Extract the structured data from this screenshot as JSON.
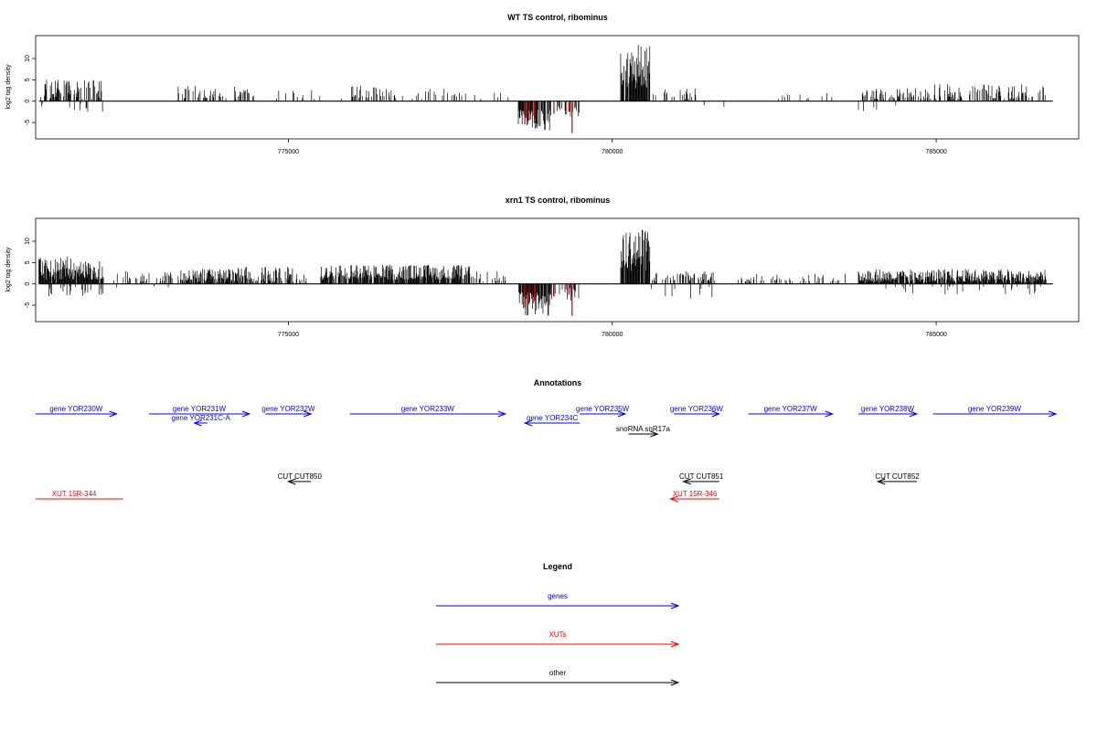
{
  "colors": {
    "gene": "#0000ff",
    "xut": "#ff0000",
    "other": "#000000",
    "signal": "#000000",
    "signal_highlight": "#cc0000"
  },
  "chart_data": [
    {
      "type": "bar",
      "title": "WT TS control, ribominus",
      "ylabel": "log2 tag density",
      "xlim": [
        771100,
        787200
      ],
      "ylim": [
        -8,
        14.5
      ],
      "xticks": [
        775000,
        780000,
        785000
      ],
      "yticks": [
        -5,
        0,
        5,
        10
      ],
      "positive_segments": [
        {
          "start": 771150,
          "end": 772150,
          "min": 0.5,
          "max": 5,
          "density": 0.55
        },
        {
          "start": 773300,
          "end": 774500,
          "min": 0.5,
          "max": 3.5,
          "density": 0.28
        },
        {
          "start": 774800,
          "end": 775500,
          "min": 0.5,
          "max": 3,
          "density": 0.18
        },
        {
          "start": 775800,
          "end": 776600,
          "min": 0.5,
          "max": 4,
          "density": 0.35
        },
        {
          "start": 776600,
          "end": 777800,
          "min": 0.5,
          "max": 3,
          "density": 0.2
        },
        {
          "start": 777800,
          "end": 778400,
          "min": 0.5,
          "max": 3,
          "density": 0.18
        },
        {
          "start": 780130,
          "end": 780580,
          "min": 3,
          "max": 13.5,
          "density": 0.95
        },
        {
          "start": 780600,
          "end": 781300,
          "min": 0.5,
          "max": 3,
          "density": 0.25
        },
        {
          "start": 782500,
          "end": 783600,
          "min": 0.5,
          "max": 2,
          "density": 0.08
        },
        {
          "start": 783800,
          "end": 784700,
          "min": 0.5,
          "max": 3,
          "density": 0.4
        },
        {
          "start": 784700,
          "end": 786700,
          "min": 0.5,
          "max": 4,
          "density": 0.35
        }
      ],
      "negative_segments": [
        {
          "start": 771150,
          "end": 772150,
          "min": 0.5,
          "max": 2.5,
          "density": 0.06
        },
        {
          "start": 778550,
          "end": 779050,
          "min": 2,
          "max": 7.5,
          "density": 0.85
        },
        {
          "start": 779050,
          "end": 779500,
          "min": 1,
          "max": 4,
          "density": 0.3
        },
        {
          "start": 781300,
          "end": 782300,
          "min": 0.5,
          "max": 1.5,
          "density": 0.03
        },
        {
          "start": 783800,
          "end": 784700,
          "min": 0.5,
          "max": 2.5,
          "density": 0.05
        }
      ],
      "highlight_bars": [
        {
          "x": 778650,
          "y": -5.5
        },
        {
          "x": 778720,
          "y": -4.5
        },
        {
          "x": 778800,
          "y": -4
        },
        {
          "x": 779100,
          "y": -3
        },
        {
          "x": 779380,
          "y": -7.5
        },
        {
          "x": 779330,
          "y": -2.5
        }
      ]
    },
    {
      "type": "bar",
      "title": "xrn1 TS control, ribominus",
      "ylabel": "log2 tag density",
      "xlim": [
        771100,
        787200
      ],
      "ylim": [
        -8,
        14.5
      ],
      "xticks": [
        775000,
        780000,
        785000
      ],
      "yticks": [
        -5,
        0,
        5,
        10
      ],
      "positive_segments": [
        {
          "start": 771150,
          "end": 771900,
          "min": 1,
          "max": 6.5,
          "density": 0.95
        },
        {
          "start": 771900,
          "end": 772150,
          "min": 1,
          "max": 5.5,
          "density": 0.8
        },
        {
          "start": 772300,
          "end": 773300,
          "min": 0.5,
          "max": 3,
          "density": 0.3
        },
        {
          "start": 773300,
          "end": 774200,
          "min": 0.5,
          "max": 3.5,
          "density": 0.75
        },
        {
          "start": 774200,
          "end": 775300,
          "min": 0.5,
          "max": 4,
          "density": 0.5
        },
        {
          "start": 775500,
          "end": 777800,
          "min": 1,
          "max": 4.5,
          "density": 0.85
        },
        {
          "start": 777800,
          "end": 778400,
          "min": 0.5,
          "max": 3,
          "density": 0.3
        },
        {
          "start": 780130,
          "end": 780580,
          "min": 3,
          "max": 13.5,
          "density": 0.95
        },
        {
          "start": 780600,
          "end": 781600,
          "min": 0.5,
          "max": 3,
          "density": 0.4
        },
        {
          "start": 781900,
          "end": 783600,
          "min": 0.5,
          "max": 2.5,
          "density": 0.2
        },
        {
          "start": 783800,
          "end": 786700,
          "min": 0.5,
          "max": 3.5,
          "density": 0.85
        }
      ],
      "negative_segments": [
        {
          "start": 771150,
          "end": 772150,
          "min": 0.5,
          "max": 3,
          "density": 0.22
        },
        {
          "start": 772300,
          "end": 774200,
          "min": 0.5,
          "max": 1,
          "density": 0.04
        },
        {
          "start": 778550,
          "end": 779050,
          "min": 2,
          "max": 7.5,
          "density": 0.9
        },
        {
          "start": 779050,
          "end": 779500,
          "min": 1,
          "max": 4,
          "density": 0.4
        },
        {
          "start": 780600,
          "end": 781600,
          "min": 0.5,
          "max": 3.5,
          "density": 0.1
        },
        {
          "start": 783800,
          "end": 786700,
          "min": 0.5,
          "max": 2.5,
          "density": 0.06
        }
      ],
      "highlight_bars": [
        {
          "x": 778650,
          "y": -5.5
        },
        {
          "x": 778720,
          "y": -4.5
        },
        {
          "x": 778800,
          "y": -4
        },
        {
          "x": 779100,
          "y": -3
        },
        {
          "x": 779380,
          "y": -7.5
        },
        {
          "x": 779330,
          "y": -2.5
        }
      ]
    }
  ],
  "annotations": {
    "title": "Annotations",
    "items": [
      {
        "label": "gene YOR230W",
        "kind": "gene",
        "start": 771100,
        "end": 772350,
        "dir": "+",
        "row": 1
      },
      {
        "label": "gene YOR231W",
        "kind": "gene",
        "start": 772850,
        "end": 774400,
        "dir": "+",
        "row": 1
      },
      {
        "label": "gene YOR231C-A",
        "kind": "gene",
        "start": 773550,
        "end": 773750,
        "dir": "-",
        "row": 2
      },
      {
        "label": "gene YOR232W",
        "kind": "gene",
        "start": 774650,
        "end": 775350,
        "dir": "+",
        "row": 1
      },
      {
        "label": "gene YOR233W",
        "kind": "gene",
        "start": 775950,
        "end": 778350,
        "dir": "+",
        "row": 1
      },
      {
        "label": "gene YOR234C",
        "kind": "gene",
        "start": 778650,
        "end": 779500,
        "dir": "-",
        "row": 2
      },
      {
        "label": "gene YOR235W",
        "kind": "gene",
        "start": 779500,
        "end": 780200,
        "dir": "+",
        "row": 1
      },
      {
        "label": "snoRNA snR17a",
        "kind": "other",
        "start": 780250,
        "end": 780700,
        "dir": "+",
        "row": 3
      },
      {
        "label": "gene YOR236W",
        "kind": "gene",
        "start": 780950,
        "end": 781650,
        "dir": "+",
        "row": 1
      },
      {
        "label": "gene YOR237W",
        "kind": "gene",
        "start": 782100,
        "end": 783400,
        "dir": "+",
        "row": 1
      },
      {
        "label": "gene YOR238W",
        "kind": "gene",
        "start": 783800,
        "end": 784700,
        "dir": "+",
        "row": 1
      },
      {
        "label": "gene YOR239W",
        "kind": "gene",
        "start": 784950,
        "end": 786850,
        "dir": "+",
        "row": 1
      },
      {
        "label": "CUT CUT850",
        "kind": "other",
        "start": 775000,
        "end": 775350,
        "dir": "-",
        "row": 4
      },
      {
        "label": "CUT CUT851",
        "kind": "other",
        "start": 781100,
        "end": 781650,
        "dir": "-",
        "row": 4
      },
      {
        "label": "CUT CUT852",
        "kind": "other",
        "start": 784100,
        "end": 784700,
        "dir": "-",
        "row": 4
      },
      {
        "label": "XUT 15R-344",
        "kind": "xut",
        "start": 771100,
        "end": 772450,
        "dir": "+",
        "row": 5,
        "nohead": true
      },
      {
        "label": "XUT 15R-346",
        "kind": "xut",
        "start": 780900,
        "end": 781650,
        "dir": "-",
        "row": 5
      }
    ]
  },
  "legend": {
    "title": "Legend",
    "items": [
      {
        "label": "genes",
        "kind": "gene"
      },
      {
        "label": "XUTs",
        "kind": "xut"
      },
      {
        "label": "other",
        "kind": "other"
      }
    ]
  }
}
